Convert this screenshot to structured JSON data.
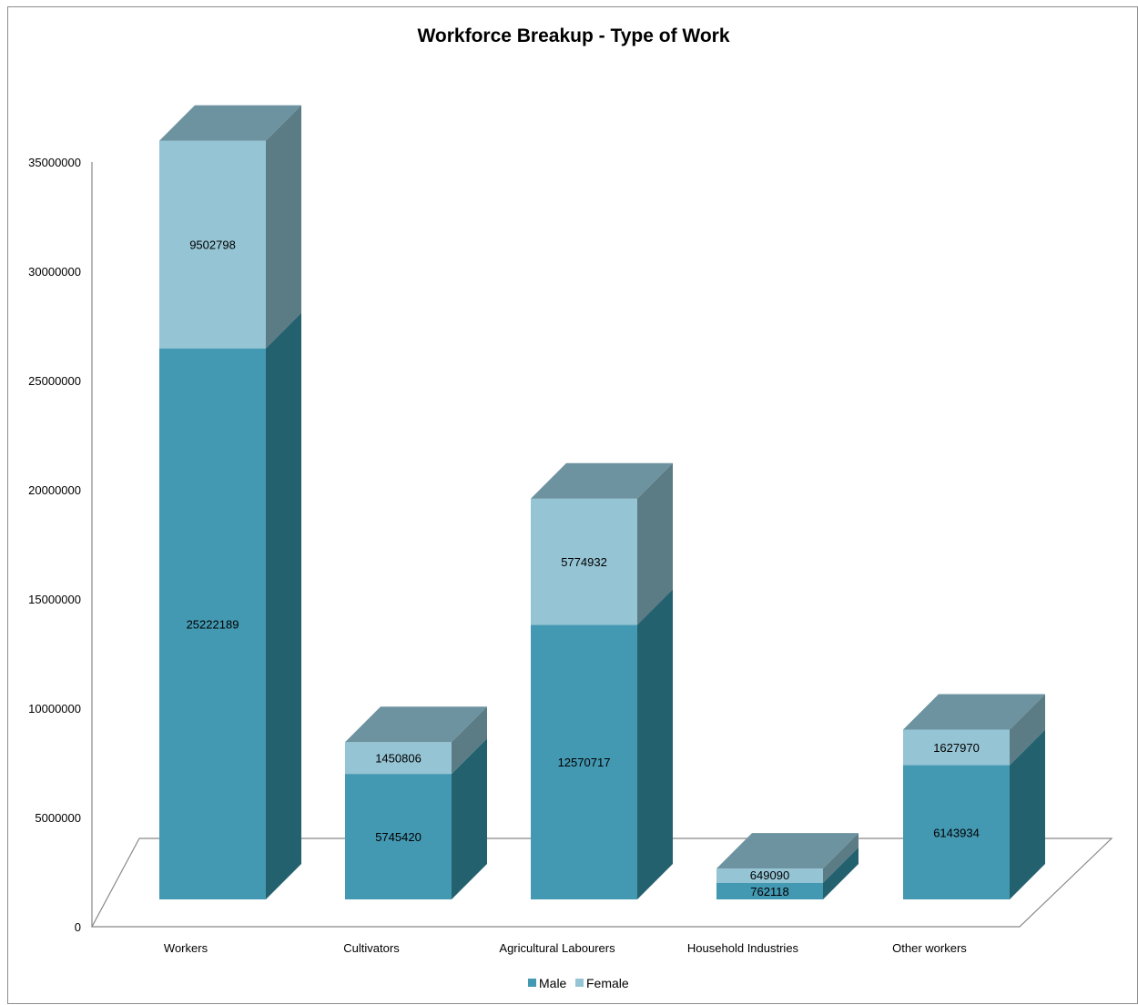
{
  "chart_data": {
    "type": "bar",
    "stacked": true,
    "three_d": true,
    "title": "Workforce Breakup - Type of Work",
    "categories": [
      "Workers",
      "Cultivators",
      "Agricultural Labourers",
      "Household Industries",
      "Other workers"
    ],
    "series": [
      {
        "name": "Male",
        "values": [
          25222189,
          5745420,
          12570717,
          762118,
          6143934
        ],
        "labels": [
          "25222189",
          "5745420",
          "12570717",
          "762118",
          "6143934"
        ]
      },
      {
        "name": "Female",
        "values": [
          9502798,
          1450806,
          5774932,
          649090,
          1627970
        ],
        "labels": [
          "9502798",
          "1450806",
          "5774932",
          "649090",
          "1627970"
        ]
      }
    ],
    "y_ticks": [
      "0",
      "5000000",
      "10000000",
      "15000000",
      "20000000",
      "25000000",
      "30000000",
      "35000000"
    ],
    "ylim": [
      0,
      35000000
    ],
    "xlabel": "",
    "ylabel": "",
    "grid": false,
    "legend_position": "bottom",
    "colors": {
      "male_front": "#4398b2",
      "male_side": "#24616f",
      "male_top": "#346f82",
      "female_front": "#95c4d4",
      "female_side": "#5b7b85",
      "female_top": "#6d93a0",
      "floor_line": "#888888"
    }
  }
}
